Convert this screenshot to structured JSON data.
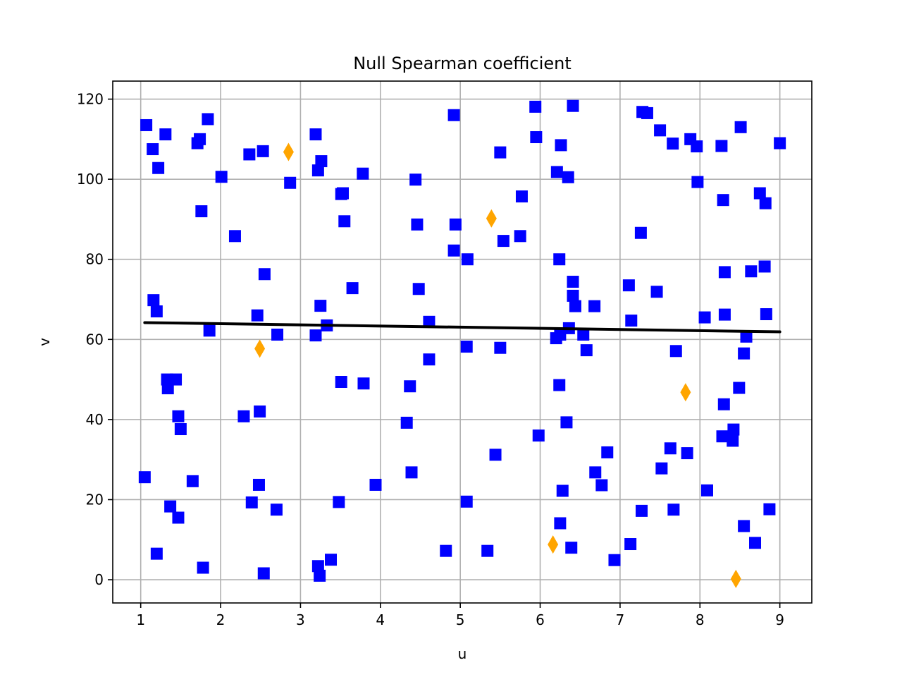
{
  "chart_data": {
    "type": "scatter",
    "title": "Null Spearman coefficient",
    "xlabel": "u",
    "ylabel": "v",
    "xlim": [
      0.65,
      9.4
    ],
    "ylim": [
      -5.8,
      124.5
    ],
    "xticks": [
      1,
      2,
      3,
      4,
      5,
      6,
      7,
      8,
      9
    ],
    "yticks": [
      0,
      20,
      40,
      60,
      80,
      100,
      120
    ],
    "grid": true,
    "colors": {
      "points": "#0000ff",
      "outliers": "#ffa500",
      "fit": "#000000"
    },
    "series": [
      {
        "marker": "square",
        "points": [
          [
            1.07,
            113.5
          ],
          [
            1.15,
            107.5
          ],
          [
            1.22,
            102.8
          ],
          [
            1.31,
            111.2
          ],
          [
            1.16,
            69.8
          ],
          [
            1.2,
            67
          ],
          [
            1.05,
            25.6
          ],
          [
            1.2,
            6.5
          ],
          [
            1.33,
            50
          ],
          [
            1.34,
            47.8
          ],
          [
            1.44,
            50
          ],
          [
            1.47,
            40.8
          ],
          [
            1.5,
            37.6
          ],
          [
            1.37,
            18.3
          ],
          [
            1.47,
            15.5
          ],
          [
            1.65,
            24.6
          ],
          [
            1.71,
            109
          ],
          [
            1.74,
            110
          ],
          [
            1.76,
            92
          ],
          [
            1.84,
            115
          ],
          [
            1.86,
            62.2
          ],
          [
            1.78,
            3
          ],
          [
            2.01,
            100.6
          ],
          [
            2.18,
            85.8
          ],
          [
            2.29,
            40.8
          ],
          [
            2.36,
            106.2
          ],
          [
            2.39,
            19.3
          ],
          [
            2.46,
            66
          ],
          [
            2.48,
            23.7
          ],
          [
            2.49,
            42
          ],
          [
            2.53,
            107
          ],
          [
            2.55,
            76.3
          ],
          [
            2.54,
            1.6
          ],
          [
            2.71,
            61.2
          ],
          [
            2.7,
            17.5
          ],
          [
            2.87,
            99.1
          ],
          [
            3.19,
            111.2
          ],
          [
            3.22,
            102.2
          ],
          [
            3.26,
            104.5
          ],
          [
            3.25,
            68.4
          ],
          [
            3.33,
            63.5
          ],
          [
            3.19,
            61
          ],
          [
            3.22,
            3.4
          ],
          [
            3.24,
            1
          ],
          [
            3.38,
            5
          ],
          [
            3.48,
            19.4
          ],
          [
            3.51,
            96.3
          ],
          [
            3.53,
            96.5
          ],
          [
            3.55,
            89.5
          ],
          [
            3.51,
            49.4
          ],
          [
            3.65,
            72.8
          ],
          [
            3.78,
            101.4
          ],
          [
            3.79,
            49
          ],
          [
            3.94,
            23.7
          ],
          [
            4.33,
            39.2
          ],
          [
            4.37,
            48.3
          ],
          [
            4.39,
            26.8
          ],
          [
            4.44,
            99.9
          ],
          [
            4.46,
            88.7
          ],
          [
            4.48,
            72.6
          ],
          [
            4.61,
            64.4
          ],
          [
            4.61,
            55
          ],
          [
            4.82,
            7.2
          ],
          [
            4.92,
            116
          ],
          [
            4.94,
            88.7
          ],
          [
            4.92,
            82.2
          ],
          [
            5.09,
            80
          ],
          [
            5.08,
            58.2
          ],
          [
            5.08,
            19.5
          ],
          [
            5.34,
            7.2
          ],
          [
            5.44,
            31.2
          ],
          [
            5.5,
            106.7
          ],
          [
            5.54,
            84.6
          ],
          [
            5.5,
            57.9
          ],
          [
            5.75,
            85.8
          ],
          [
            5.77,
            95.7
          ],
          [
            5.94,
            118.1
          ],
          [
            5.95,
            110.5
          ],
          [
            5.98,
            36
          ],
          [
            6.21,
            101.8
          ],
          [
            6.24,
            80
          ],
          [
            6.26,
            108.5
          ],
          [
            6.35,
            100.5
          ],
          [
            6.41,
            118.3
          ],
          [
            6.2,
            60.3
          ],
          [
            6.25,
            61.2
          ],
          [
            6.24,
            48.6
          ],
          [
            6.33,
            39.3
          ],
          [
            6.28,
            22.2
          ],
          [
            6.25,
            14.1
          ],
          [
            6.39,
            8
          ],
          [
            6.41,
            74.4
          ],
          [
            6.41,
            70.9
          ],
          [
            6.44,
            68.3
          ],
          [
            6.36,
            62.8
          ],
          [
            6.54,
            61.2
          ],
          [
            6.58,
            57.3
          ],
          [
            6.68,
            68.3
          ],
          [
            6.69,
            26.8
          ],
          [
            6.77,
            23.6
          ],
          [
            6.84,
            31.8
          ],
          [
            6.93,
            4.9
          ],
          [
            7.11,
            73.5
          ],
          [
            7.14,
            64.7
          ],
          [
            7.13,
            8.9
          ],
          [
            7.26,
            86.6
          ],
          [
            7.27,
            17.2
          ],
          [
            7.28,
            116.8
          ],
          [
            7.34,
            116.5
          ],
          [
            7.46,
            71.9
          ],
          [
            7.5,
            112.2
          ],
          [
            7.52,
            27.8
          ],
          [
            7.63,
            32.8
          ],
          [
            7.66,
            108.9
          ],
          [
            7.67,
            17.5
          ],
          [
            7.7,
            57.1
          ],
          [
            7.84,
            31.6
          ],
          [
            7.88,
            110
          ],
          [
            7.96,
            108.2
          ],
          [
            7.97,
            99.3
          ],
          [
            8.06,
            65.5
          ],
          [
            8.09,
            22.3
          ],
          [
            8.27,
            108.3
          ],
          [
            8.29,
            94.8
          ],
          [
            8.31,
            76.8
          ],
          [
            8.31,
            66.2
          ],
          [
            8.3,
            43.8
          ],
          [
            8.28,
            35.8
          ],
          [
            8.41,
            34.7
          ],
          [
            8.42,
            37.5
          ],
          [
            8.49,
            47.9
          ],
          [
            8.51,
            113
          ],
          [
            8.55,
            56.5
          ],
          [
            8.55,
            13.4
          ],
          [
            8.58,
            60.7
          ],
          [
            8.64,
            77
          ],
          [
            8.69,
            9.2
          ],
          [
            8.75,
            96.5
          ],
          [
            8.82,
            94
          ],
          [
            8.81,
            78.2
          ],
          [
            8.83,
            66.3
          ],
          [
            8.87,
            17.6
          ],
          [
            9.0,
            109
          ]
        ]
      },
      {
        "marker": "diamond",
        "points": [
          [
            2.85,
            106.8
          ],
          [
            5.39,
            90.2
          ],
          [
            2.49,
            57.7
          ],
          [
            7.82,
            46.8
          ],
          [
            6.16,
            8.8
          ],
          [
            8.45,
            0.2
          ]
        ]
      }
    ],
    "fit_line": {
      "x": [
        1.05,
        9.0
      ],
      "y": [
        64.2,
        61.9
      ]
    }
  }
}
